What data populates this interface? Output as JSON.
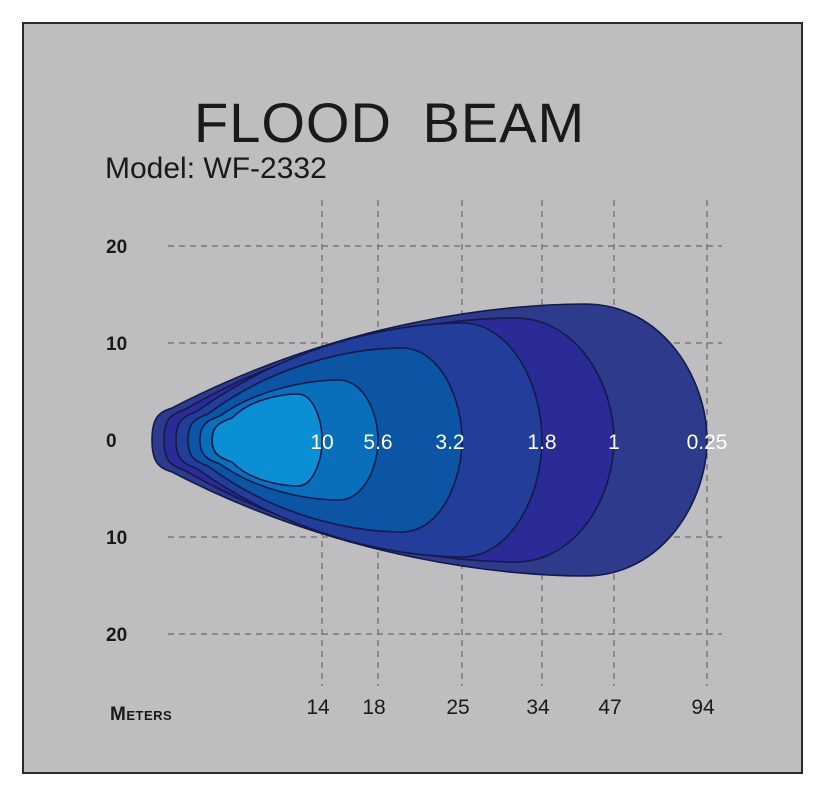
{
  "chart_data": {
    "type": "contour",
    "title": "FLOOD  BEAM",
    "subtitle": "Model: WF-2332",
    "xlabel": "Meters",
    "ylabel": "",
    "x_ticks": [
      "14",
      "18",
      "25",
      "34",
      "47",
      "94"
    ],
    "y_ticks": [
      "20",
      "10",
      "0",
      "10",
      "20"
    ],
    "ylim": [
      -20,
      20
    ],
    "grid": true,
    "contours": [
      {
        "label": "0.25",
        "color": "#2e3a8c"
      },
      {
        "label": "1",
        "color": "#2a2b96"
      },
      {
        "label": "1.8",
        "color": "#223e9a"
      },
      {
        "label": "3.2",
        "color": "#0c55a5"
      },
      {
        "label": "5.6",
        "color": "#0a6fbb"
      },
      {
        "label": "10",
        "color": "#0a8ed4"
      }
    ]
  }
}
